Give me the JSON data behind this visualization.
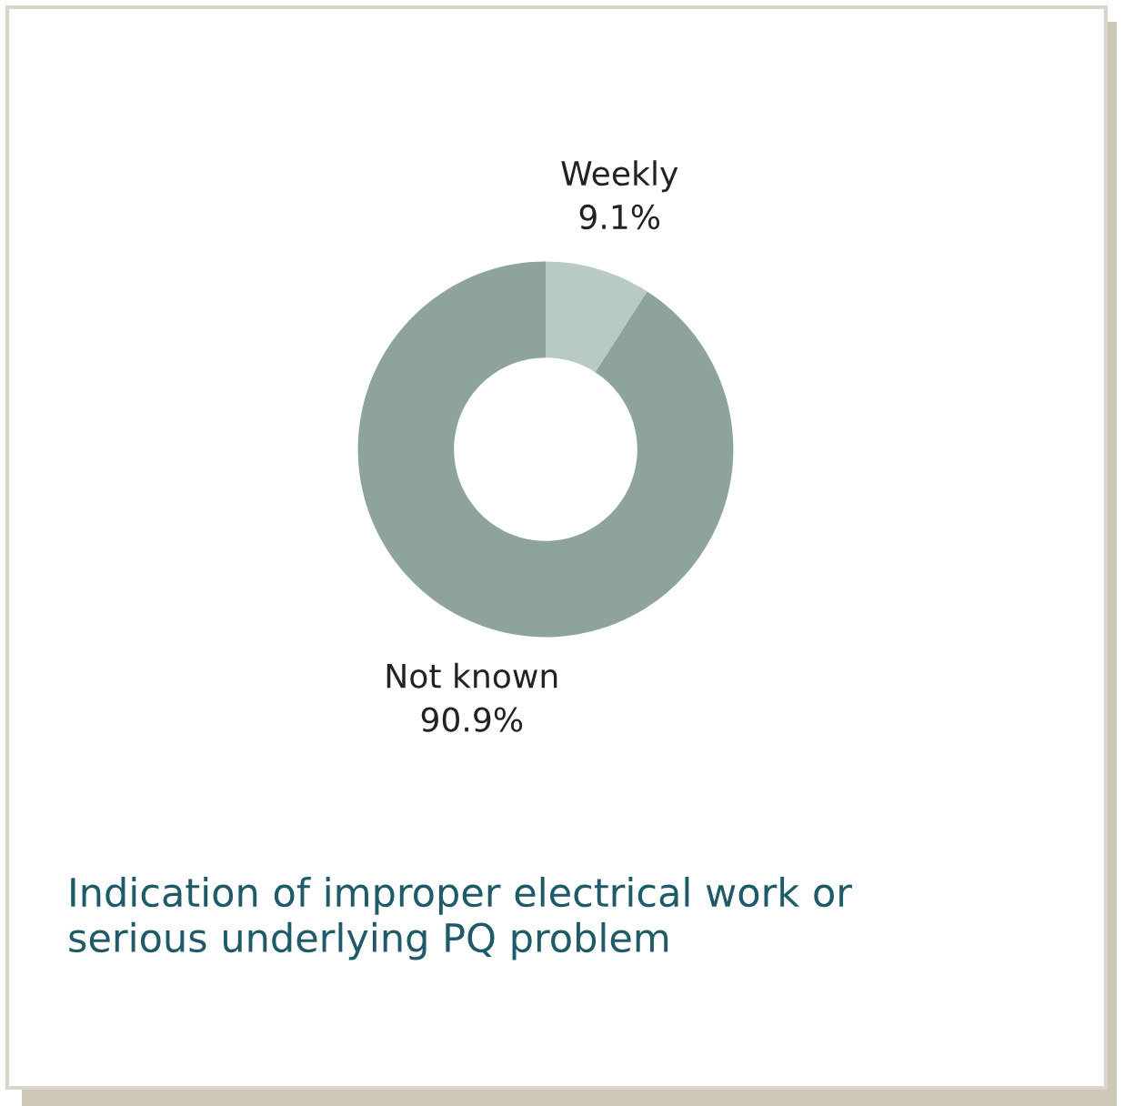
{
  "chart_data": {
    "type": "donut",
    "categories": [
      "Weekly",
      "Not known"
    ],
    "values": [
      9.1,
      90.9
    ],
    "colors": [
      "#b8cbc3",
      "#8ea39e"
    ],
    "value_labels": [
      "9.1%",
      "90.9%"
    ],
    "title": "Indication of improper electrical work or\nserious underlying PQ problem",
    "legend": false
  }
}
